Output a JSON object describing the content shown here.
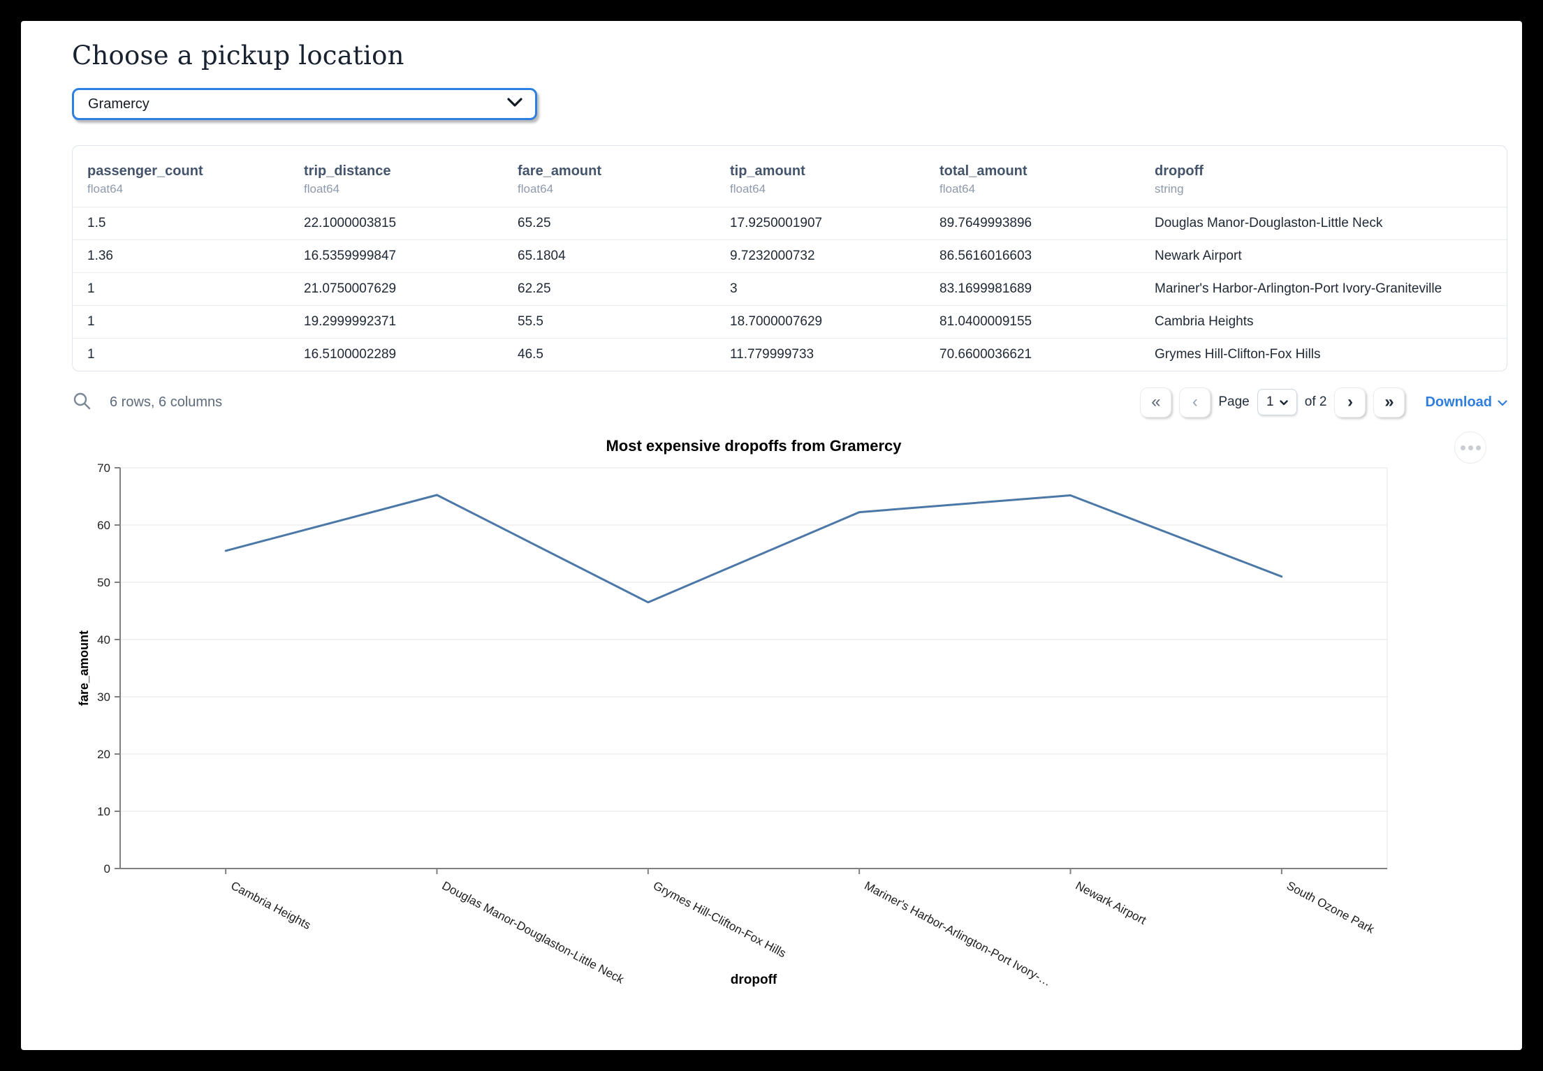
{
  "window": {
    "title": "Choose a pickup location"
  },
  "picker": {
    "value": "Gramercy"
  },
  "table": {
    "columns": [
      {
        "name": "passenger_count",
        "type": "float64"
      },
      {
        "name": "trip_distance",
        "type": "float64"
      },
      {
        "name": "fare_amount",
        "type": "float64"
      },
      {
        "name": "tip_amount",
        "type": "float64"
      },
      {
        "name": "total_amount",
        "type": "float64"
      },
      {
        "name": "dropoff",
        "type": "string"
      }
    ],
    "rows": [
      [
        "1.5",
        "22.1000003815",
        "65.25",
        "17.9250001907",
        "89.7649993896",
        "Douglas Manor-Douglaston-Little Neck"
      ],
      [
        "1.36",
        "16.5359999847",
        "65.1804",
        "9.7232000732",
        "86.5616016603",
        "Newark Airport"
      ],
      [
        "1",
        "21.0750007629",
        "62.25",
        "3",
        "83.1699981689",
        "Mariner's Harbor-Arlington-Port Ivory-Graniteville"
      ],
      [
        "1",
        "19.2999992371",
        "55.5",
        "18.7000007629",
        "81.0400009155",
        "Cambria Heights"
      ],
      [
        "1",
        "16.5100002289",
        "46.5",
        "11.779999733",
        "70.6600036621",
        "Grymes Hill-Clifton-Fox Hills"
      ]
    ],
    "summary": "6 rows, 6 columns",
    "pagination": {
      "first_glyph": "«",
      "prev_glyph": "‹",
      "page_label": "Page",
      "current_page": "1",
      "total_label": "of 2",
      "next_glyph": "›",
      "last_glyph": "»"
    },
    "download_label": "Download"
  },
  "chart_data": {
    "type": "line",
    "title": "Most expensive dropoffs from Gramercy",
    "xlabel": "dropoff",
    "ylabel": "fare_amount",
    "categories": [
      "Cambria Heights",
      "Douglas Manor-Douglaston-Little Neck",
      "Grymes Hill-Clifton-Fox Hills",
      "Mariner's Harbor-Arlington-Port Ivory-…",
      "Newark Airport",
      "South Ozone Park"
    ],
    "values": [
      55.5,
      65.25,
      46.5,
      62.25,
      65.1804,
      51
    ],
    "ylim": [
      0,
      70
    ],
    "yticks": [
      0,
      10,
      20,
      30,
      40,
      50,
      60,
      70
    ],
    "grid": true,
    "legend": false,
    "line_color": "#4c78a8"
  },
  "icons": {
    "search": "magnifier",
    "picker_chevron": "chevron-down",
    "menu": "ellipsis"
  },
  "colors": {
    "accent_blue": "#2e80e0",
    "link_blue": "#2f7ddd",
    "line_blue": "#4c78a8"
  }
}
